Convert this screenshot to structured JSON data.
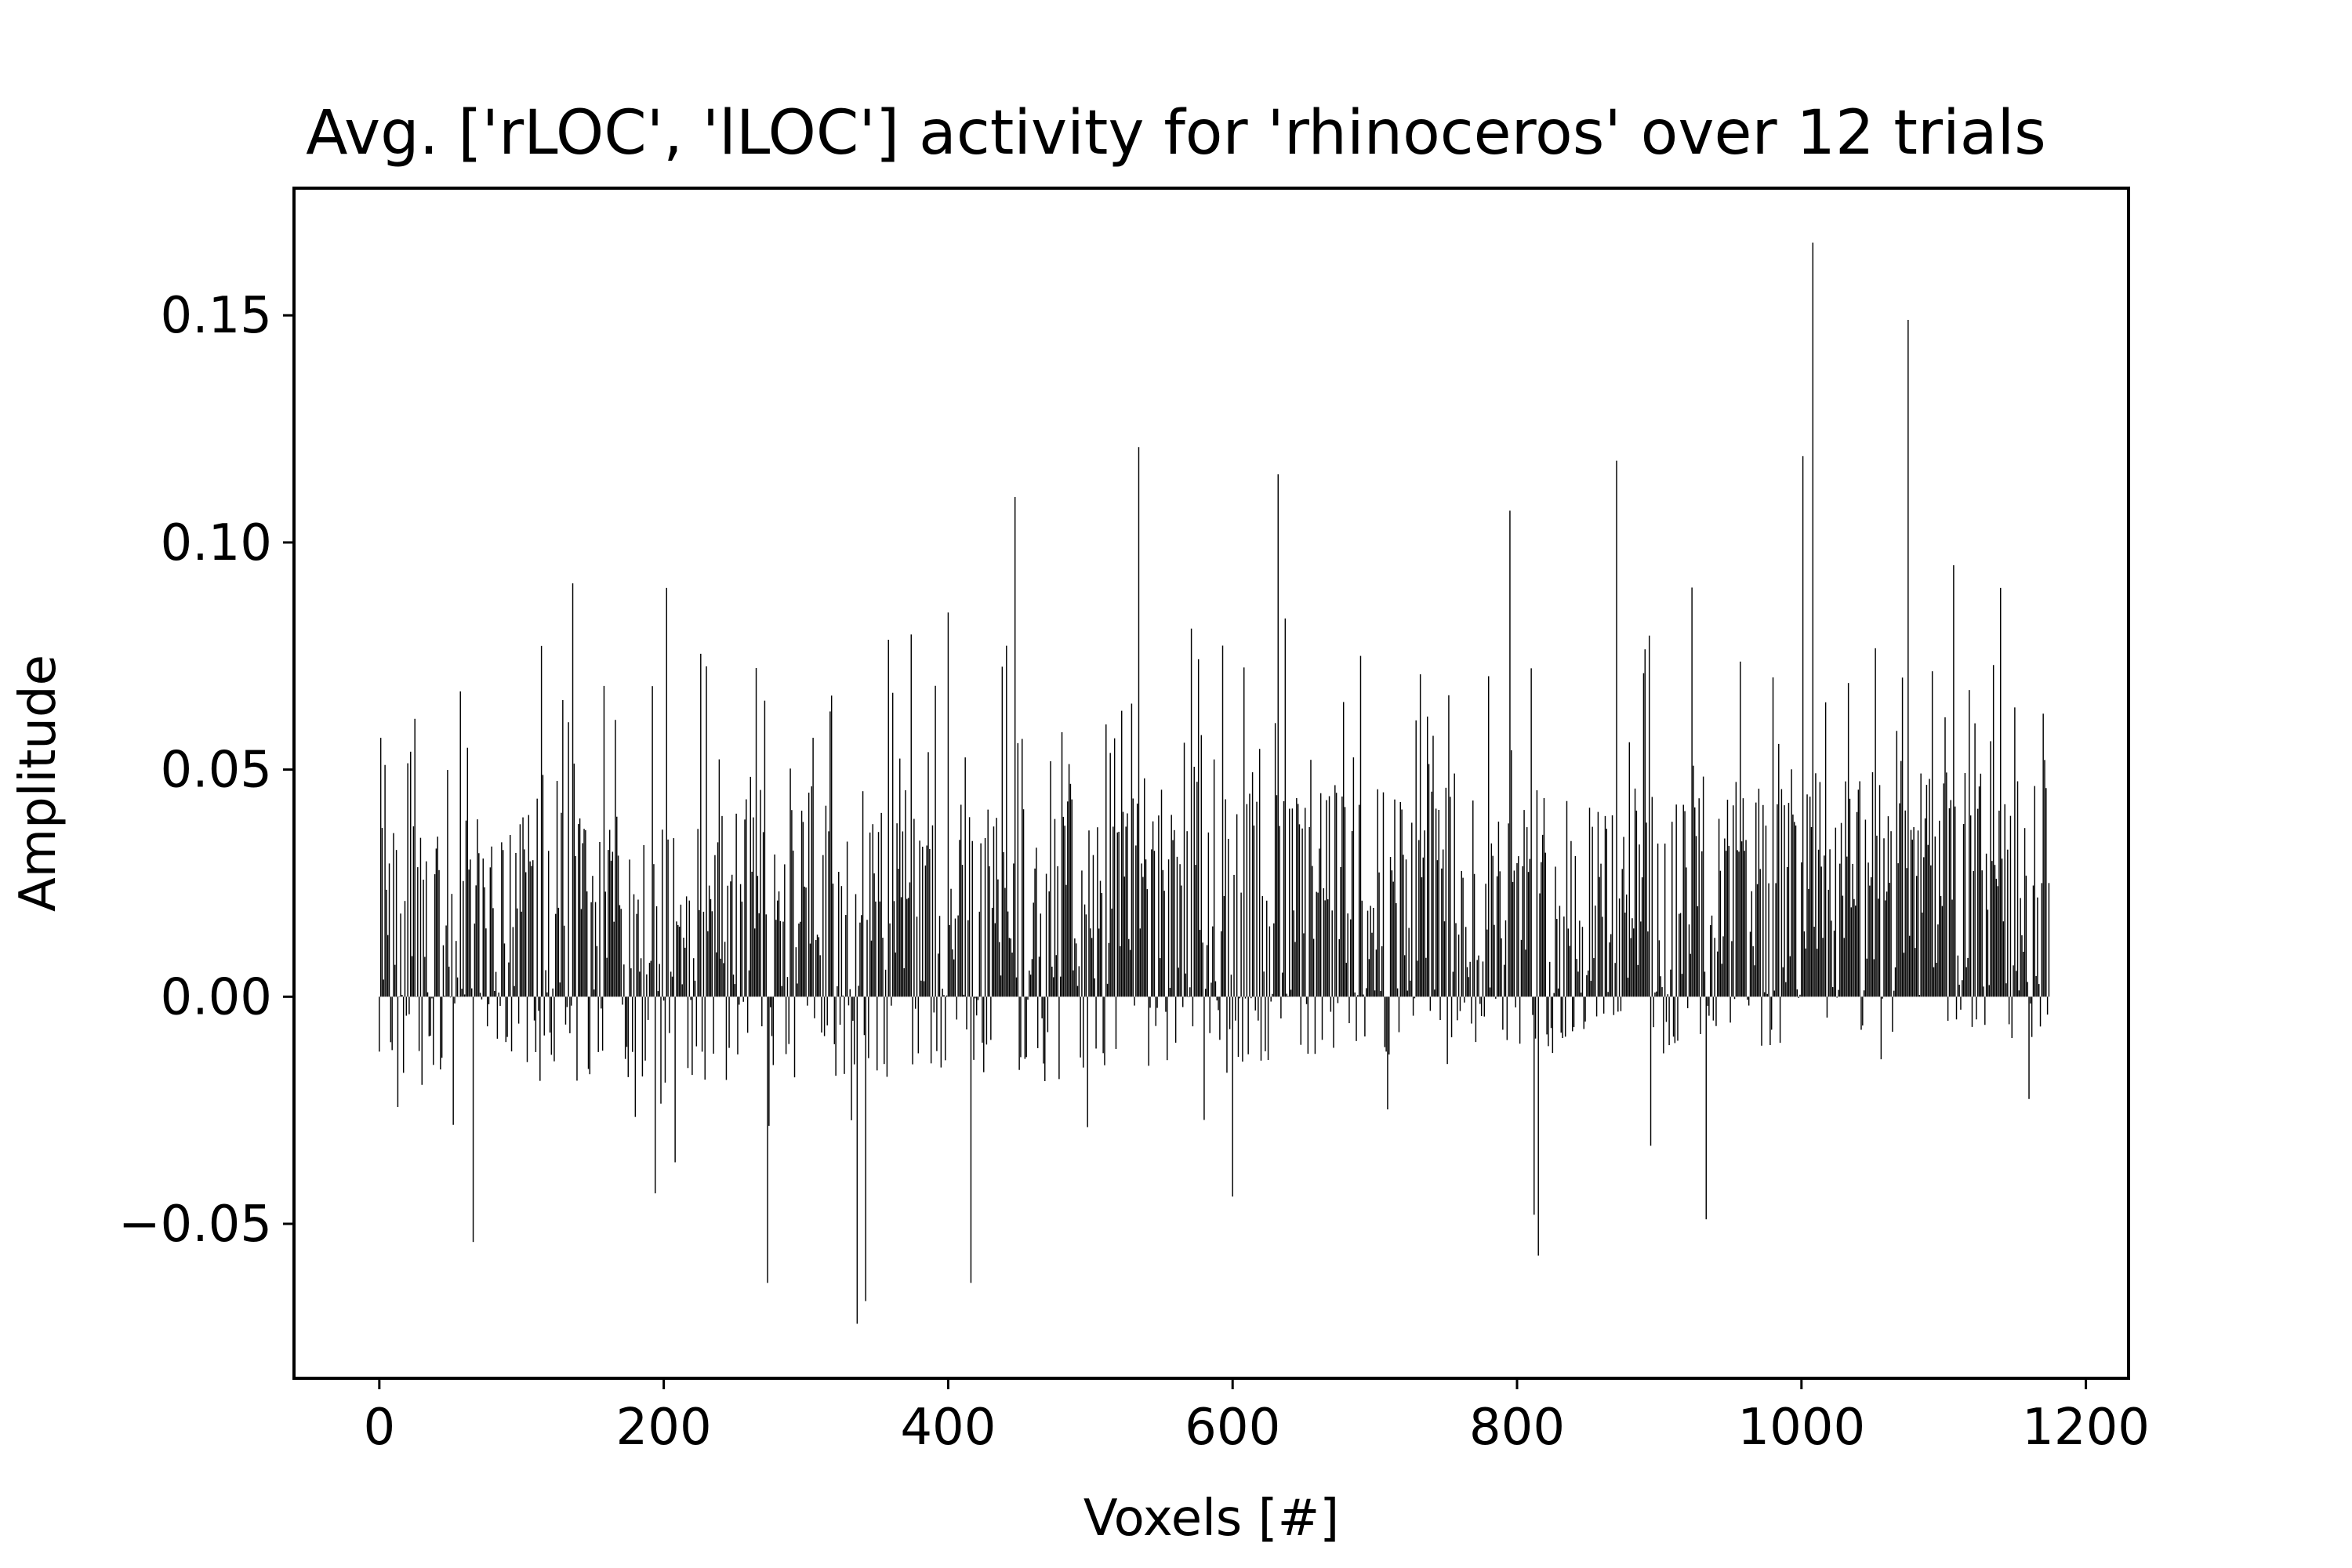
{
  "chart_data": {
    "type": "bar",
    "title": "Avg. ['rLOC', 'lLOC'] activity for 'rhinoceros' over 12 trials",
    "xlabel": "Voxels [#]",
    "ylabel": "Amplitude",
    "xlim": [
      -60,
      1230
    ],
    "ylim": [
      -0.084,
      0.178
    ],
    "xticks": [
      0,
      200,
      400,
      600,
      800,
      1000,
      1200
    ],
    "xtick_labels": [
      "0",
      "200",
      "400",
      "600",
      "800",
      "1000",
      "1200"
    ],
    "yticks": [
      -0.05,
      0.0,
      0.05,
      0.1,
      0.15
    ],
    "ytick_labels": [
      "−0.05",
      "0.00",
      "0.05",
      "0.10",
      "0.15"
    ],
    "grid": false,
    "bar_color": "#000000",
    "n_voxels": 1175,
    "notable_values": [
      {
        "x": 1,
        "value": 0.057
      },
      {
        "x": 66,
        "value": -0.054
      },
      {
        "x": 136,
        "value": 0.091
      },
      {
        "x": 202,
        "value": 0.09
      },
      {
        "x": 273,
        "value": -0.063
      },
      {
        "x": 336,
        "value": -0.072
      },
      {
        "x": 342,
        "value": -0.067
      },
      {
        "x": 416,
        "value": -0.063
      },
      {
        "x": 447,
        "value": 0.11
      },
      {
        "x": 534,
        "value": 0.121
      },
      {
        "x": 600,
        "value": -0.044
      },
      {
        "x": 632,
        "value": 0.115
      },
      {
        "x": 795,
        "value": 0.107
      },
      {
        "x": 812,
        "value": -0.048
      },
      {
        "x": 815,
        "value": -0.057
      },
      {
        "x": 870,
        "value": 0.118
      },
      {
        "x": 933,
        "value": -0.049
      },
      {
        "x": 1001,
        "value": 0.119
      },
      {
        "x": 1008,
        "value": 0.166
      },
      {
        "x": 1075,
        "value": 0.149
      },
      {
        "x": 1107,
        "value": 0.095
      },
      {
        "x": 1140,
        "value": 0.09
      }
    ]
  }
}
